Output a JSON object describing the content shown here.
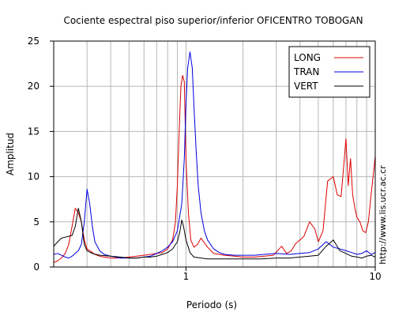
{
  "chart_data": {
    "type": "line",
    "title": "Cociente espectral piso superior/inferior OFICENTRO TOBOGAN",
    "xlabel": "Periodo (s)",
    "ylabel": "Amplitud",
    "credit": "http://www.lis.ucr.ac.cr",
    "x_scale": "log",
    "xlim": [
      0.2,
      10
    ],
    "ylim": [
      0,
      25
    ],
    "x_tick_labels": [
      {
        "value": 1,
        "label": "1"
      },
      {
        "value": 10,
        "label": "10"
      }
    ],
    "y_tick_labels": [
      {
        "value": 0,
        "label": "0"
      },
      {
        "value": 5,
        "label": "5"
      },
      {
        "value": 10,
        "label": "10"
      },
      {
        "value": 15,
        "label": "15"
      },
      {
        "value": 20,
        "label": "20"
      },
      {
        "value": 25,
        "label": "25"
      }
    ],
    "grid": true,
    "legend_position": "top-right",
    "series": [
      {
        "name": "LONG",
        "color": "#dd0000",
        "x": [
          0.2,
          0.21,
          0.22,
          0.23,
          0.24,
          0.25,
          0.26,
          0.27,
          0.28,
          0.29,
          0.3,
          0.31,
          0.32,
          0.33,
          0.35,
          0.37,
          0.4,
          0.45,
          0.5,
          0.55,
          0.6,
          0.65,
          0.7,
          0.75,
          0.8,
          0.85,
          0.88,
          0.9,
          0.92,
          0.94,
          0.96,
          0.98,
          1.0,
          1.03,
          1.06,
          1.1,
          1.15,
          1.2,
          1.3,
          1.4,
          1.6,
          1.8,
          2.0,
          2.3,
          2.6,
          2.9,
          3.2,
          3.4,
          3.6,
          3.8,
          4.0,
          4.2,
          4.5,
          4.8,
          5.0,
          5.3,
          5.6,
          6.0,
          6.3,
          6.6,
          6.8,
          7.0,
          7.2,
          7.4,
          7.6,
          7.8,
          8.0,
          8.3,
          8.6,
          8.9,
          9.2,
          9.5,
          9.8,
          10.0
        ],
        "y": [
          0.5,
          0.7,
          1.0,
          1.5,
          2.5,
          4.5,
          6.5,
          6.0,
          5.0,
          3.0,
          2.0,
          1.8,
          1.6,
          1.4,
          1.2,
          1.1,
          1.0,
          1.0,
          1.1,
          1.2,
          1.3,
          1.4,
          1.5,
          1.6,
          2.0,
          3.0,
          5.0,
          9.0,
          15.0,
          20.0,
          21.2,
          20.5,
          12.0,
          6.0,
          3.0,
          2.2,
          2.5,
          3.2,
          2.2,
          1.5,
          1.3,
          1.2,
          1.1,
          1.1,
          1.2,
          1.3,
          2.3,
          1.5,
          1.8,
          2.6,
          3.0,
          3.4,
          5.0,
          4.2,
          2.8,
          4.0,
          9.5,
          10.0,
          8.0,
          7.8,
          11.0,
          14.2,
          9.0,
          12.0,
          8.0,
          6.5,
          5.5,
          5.0,
          4.0,
          3.8,
          5.0,
          8.0,
          10.5,
          12.3
        ]
      },
      {
        "name": "TRAN",
        "color": "#0000dd",
        "x": [
          0.2,
          0.21,
          0.22,
          0.23,
          0.24,
          0.25,
          0.26,
          0.27,
          0.28,
          0.29,
          0.3,
          0.31,
          0.32,
          0.33,
          0.35,
          0.37,
          0.4,
          0.45,
          0.5,
          0.55,
          0.6,
          0.65,
          0.7,
          0.75,
          0.8,
          0.85,
          0.9,
          0.95,
          0.98,
          1.0,
          1.02,
          1.05,
          1.08,
          1.1,
          1.13,
          1.16,
          1.2,
          1.25,
          1.3,
          1.4,
          1.5,
          1.6,
          1.8,
          2.0,
          2.3,
          2.6,
          3.0,
          3.5,
          4.0,
          4.5,
          5.0,
          5.5,
          6.0,
          6.5,
          7.0,
          7.5,
          8.0,
          8.5,
          9.0,
          9.5,
          10.0
        ],
        "y": [
          1.4,
          1.5,
          1.3,
          1.1,
          1.0,
          1.2,
          1.5,
          1.8,
          2.5,
          5.0,
          8.6,
          7.0,
          4.5,
          2.8,
          1.8,
          1.4,
          1.2,
          1.0,
          1.0,
          1.0,
          1.1,
          1.2,
          1.5,
          1.8,
          2.2,
          2.8,
          4.0,
          7.0,
          12.0,
          18.0,
          22.0,
          23.8,
          22.0,
          18.0,
          13.0,
          9.0,
          6.0,
          4.0,
          3.0,
          2.0,
          1.6,
          1.4,
          1.3,
          1.3,
          1.3,
          1.4,
          1.5,
          1.4,
          1.5,
          1.6,
          2.0,
          2.8,
          2.2,
          2.0,
          1.8,
          1.6,
          1.4,
          1.5,
          1.8,
          1.4,
          1.6
        ]
      },
      {
        "name": "VERT",
        "color": "#000000",
        "x": [
          0.2,
          0.21,
          0.22,
          0.23,
          0.24,
          0.25,
          0.26,
          0.27,
          0.28,
          0.29,
          0.3,
          0.32,
          0.35,
          0.4,
          0.45,
          0.5,
          0.55,
          0.6,
          0.65,
          0.7,
          0.75,
          0.8,
          0.85,
          0.9,
          0.93,
          0.95,
          0.97,
          1.0,
          1.05,
          1.1,
          1.2,
          1.3,
          1.5,
          1.8,
          2.0,
          2.5,
          3.0,
          3.5,
          4.0,
          4.5,
          5.0,
          5.5,
          6.0,
          6.5,
          7.0,
          7.5,
          8.0,
          8.5,
          9.0,
          9.5,
          10.0
        ],
        "y": [
          2.3,
          2.8,
          3.2,
          3.3,
          3.4,
          3.5,
          4.5,
          6.5,
          5.0,
          2.5,
          1.8,
          1.5,
          1.3,
          1.2,
          1.1,
          1.0,
          1.0,
          1.1,
          1.1,
          1.2,
          1.4,
          1.6,
          2.0,
          2.8,
          4.0,
          5.2,
          4.5,
          3.0,
          1.6,
          1.1,
          1.0,
          0.9,
          0.9,
          0.9,
          0.9,
          0.9,
          1.0,
          1.0,
          1.1,
          1.2,
          1.3,
          2.3,
          3.0,
          1.8,
          1.5,
          1.2,
          1.1,
          1.0,
          1.2,
          1.3,
          1.1
        ]
      }
    ]
  }
}
